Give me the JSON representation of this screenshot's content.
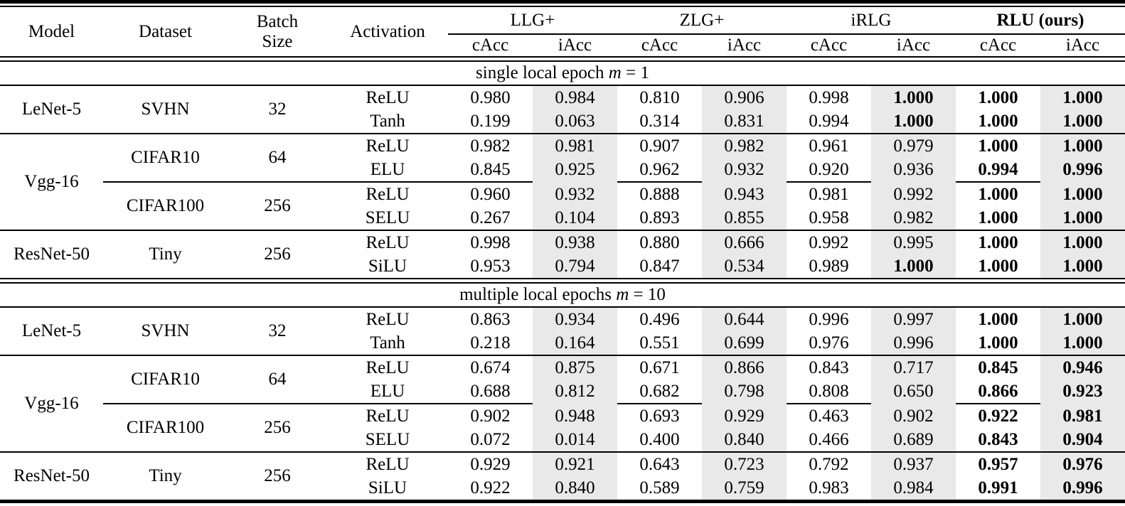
{
  "colors": {
    "shade": "#e9e9e9",
    "rule": "#000000"
  },
  "table": {
    "columns": {
      "model": "Model",
      "dataset": "Dataset",
      "batch_line1": "Batch",
      "batch_line2": "Size",
      "activation": "Activation"
    },
    "groups": [
      {
        "label": "LLG+",
        "bold": false
      },
      {
        "label": "ZLG+",
        "bold": false
      },
      {
        "label": "iRLG",
        "bold": false
      },
      {
        "label": "RLU (ours)",
        "bold": true
      }
    ],
    "subcols": [
      "cAcc",
      "iAcc"
    ],
    "sections": [
      {
        "title": {
          "prefix": "single local epoch ",
          "var": "m",
          "eq": " = 1"
        },
        "groups": [
          {
            "model": "LeNet-5",
            "blocks": [
              {
                "dataset": "SVHN",
                "batch": "32",
                "rows": [
                  {
                    "activation": "ReLU",
                    "values": [
                      "0.980",
                      "0.984",
                      "0.810",
                      "0.906",
                      "0.998",
                      "1.000",
                      "1.000",
                      "1.000"
                    ],
                    "bold": [
                      5,
                      6,
                      7
                    ]
                  },
                  {
                    "activation": "Tanh",
                    "values": [
                      "0.199",
                      "0.063",
                      "0.314",
                      "0.831",
                      "0.994",
                      "1.000",
                      "1.000",
                      "1.000"
                    ],
                    "bold": [
                      5,
                      6,
                      7
                    ]
                  }
                ]
              }
            ]
          },
          {
            "model": "Vgg-16",
            "blocks": [
              {
                "dataset": "CIFAR10",
                "batch": "64",
                "rows": [
                  {
                    "activation": "ReLU",
                    "values": [
                      "0.982",
                      "0.981",
                      "0.907",
                      "0.982",
                      "0.961",
                      "0.979",
                      "1.000",
                      "1.000"
                    ],
                    "bold": [
                      6,
                      7
                    ]
                  },
                  {
                    "activation": "ELU",
                    "values": [
                      "0.845",
                      "0.925",
                      "0.962",
                      "0.932",
                      "0.920",
                      "0.936",
                      "0.994",
                      "0.996"
                    ],
                    "bold": [
                      6,
                      7
                    ]
                  }
                ]
              },
              {
                "dataset": "CIFAR100",
                "batch": "256",
                "rows": [
                  {
                    "activation": "ReLU",
                    "values": [
                      "0.960",
                      "0.932",
                      "0.888",
                      "0.943",
                      "0.981",
                      "0.992",
                      "1.000",
                      "1.000"
                    ],
                    "bold": [
                      6,
                      7
                    ]
                  },
                  {
                    "activation": "SELU",
                    "values": [
                      "0.267",
                      "0.104",
                      "0.893",
                      "0.855",
                      "0.958",
                      "0.982",
                      "1.000",
                      "1.000"
                    ],
                    "bold": [
                      6,
                      7
                    ]
                  }
                ]
              }
            ]
          },
          {
            "model": "ResNet-50",
            "blocks": [
              {
                "dataset": "Tiny",
                "batch": "256",
                "rows": [
                  {
                    "activation": "ReLU",
                    "values": [
                      "0.998",
                      "0.938",
                      "0.880",
                      "0.666",
                      "0.992",
                      "0.995",
                      "1.000",
                      "1.000"
                    ],
                    "bold": [
                      6,
                      7
                    ]
                  },
                  {
                    "activation": "SiLU",
                    "values": [
                      "0.953",
                      "0.794",
                      "0.847",
                      "0.534",
                      "0.989",
                      "1.000",
                      "1.000",
                      "1.000"
                    ],
                    "bold": [
                      5,
                      6,
                      7
                    ]
                  }
                ]
              }
            ]
          }
        ]
      },
      {
        "title": {
          "prefix": "multiple local epochs ",
          "var": "m",
          "eq": " = 10"
        },
        "groups": [
          {
            "model": "LeNet-5",
            "blocks": [
              {
                "dataset": "SVHN",
                "batch": "32",
                "rows": [
                  {
                    "activation": "ReLU",
                    "values": [
                      "0.863",
                      "0.934",
                      "0.496",
                      "0.644",
                      "0.996",
                      "0.997",
                      "1.000",
                      "1.000"
                    ],
                    "bold": [
                      6,
                      7
                    ]
                  },
                  {
                    "activation": "Tanh",
                    "values": [
                      "0.218",
                      "0.164",
                      "0.551",
                      "0.699",
                      "0.976",
                      "0.996",
                      "1.000",
                      "1.000"
                    ],
                    "bold": [
                      6,
                      7
                    ]
                  }
                ]
              }
            ]
          },
          {
            "model": "Vgg-16",
            "blocks": [
              {
                "dataset": "CIFAR10",
                "batch": "64",
                "rows": [
                  {
                    "activation": "ReLU",
                    "values": [
                      "0.674",
                      "0.875",
                      "0.671",
                      "0.866",
                      "0.843",
                      "0.717",
                      "0.845",
                      "0.946"
                    ],
                    "bold": [
                      6,
                      7
                    ]
                  },
                  {
                    "activation": "ELU",
                    "values": [
                      "0.688",
                      "0.812",
                      "0.682",
                      "0.798",
                      "0.808",
                      "0.650",
                      "0.866",
                      "0.923"
                    ],
                    "bold": [
                      6,
                      7
                    ]
                  }
                ]
              },
              {
                "dataset": "CIFAR100",
                "batch": "256",
                "rows": [
                  {
                    "activation": "ReLU",
                    "values": [
                      "0.902",
                      "0.948",
                      "0.693",
                      "0.929",
                      "0.463",
                      "0.902",
                      "0.922",
                      "0.981"
                    ],
                    "bold": [
                      6,
                      7
                    ]
                  },
                  {
                    "activation": "SELU",
                    "values": [
                      "0.072",
                      "0.014",
                      "0.400",
                      "0.840",
                      "0.466",
                      "0.689",
                      "0.843",
                      "0.904"
                    ],
                    "bold": [
                      6,
                      7
                    ]
                  }
                ]
              }
            ]
          },
          {
            "model": "ResNet-50",
            "blocks": [
              {
                "dataset": "Tiny",
                "batch": "256",
                "rows": [
                  {
                    "activation": "ReLU",
                    "values": [
                      "0.929",
                      "0.921",
                      "0.643",
                      "0.723",
                      "0.792",
                      "0.937",
                      "0.957",
                      "0.976"
                    ],
                    "bold": [
                      6,
                      7
                    ]
                  },
                  {
                    "activation": "SiLU",
                    "values": [
                      "0.922",
                      "0.840",
                      "0.589",
                      "0.759",
                      "0.983",
                      "0.984",
                      "0.991",
                      "0.996"
                    ],
                    "bold": [
                      6,
                      7
                    ]
                  }
                ]
              }
            ]
          }
        ]
      }
    ]
  }
}
